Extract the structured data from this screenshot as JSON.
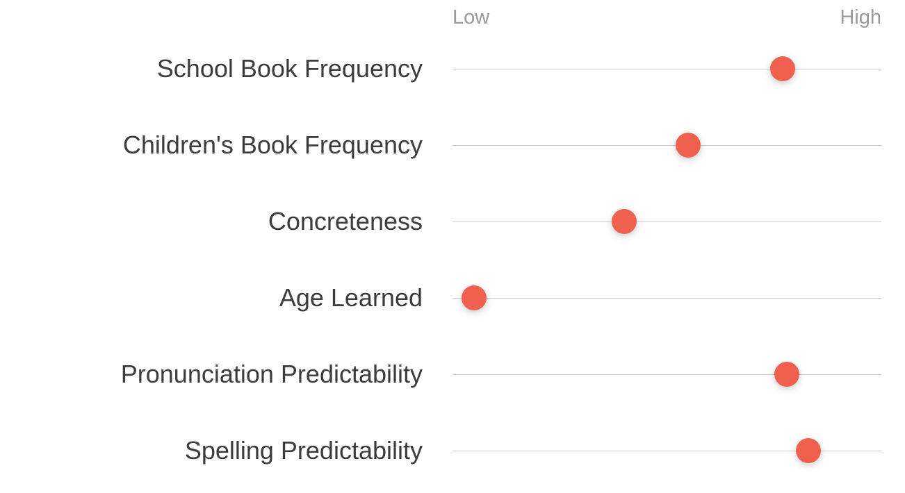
{
  "chart_data": {
    "type": "scatter",
    "variant": "dot-plot",
    "title": "",
    "scale_labels": {
      "low": "Low",
      "high": "High"
    },
    "categories": [
      "School Book Frequency",
      "Children's Book Frequency",
      "Concreteness",
      "Age Learned",
      "Pronunciation Predictability",
      "Spelling Predictability"
    ],
    "values": [
      77,
      55,
      40,
      5,
      78,
      83
    ],
    "value_range": [
      0,
      100
    ],
    "grid": "per-row horizontal track lines",
    "legend": "none",
    "colors": {
      "dot": "#f0604e",
      "track_line": "#cbcbcb",
      "row_label": "#3c3c3c",
      "axis_label": "#9a9a9a",
      "background": "#ffffff"
    }
  }
}
